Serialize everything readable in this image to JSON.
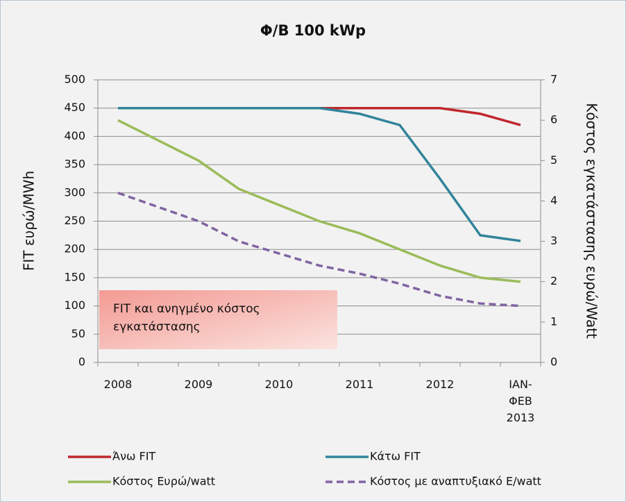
{
  "chart_data": {
    "type": "line",
    "title": "Φ/Β 100 kWp",
    "y_label": "FIT ευρώ/MWh",
    "y2_label": "Κόστος εγκατάστασης ευρώ/Watt",
    "annotation": "FIT και ανηγμένο κόστος εγκατάστασης",
    "categories": [
      "2008",
      null,
      "2009",
      null,
      "2010",
      null,
      "2011",
      null,
      "2012",
      null,
      "ΙΑΝ-ΦΕΒ 2013"
    ],
    "ylim": [
      0,
      500
    ],
    "yticks": [
      0,
      50,
      100,
      150,
      200,
      250,
      300,
      350,
      400,
      450,
      500
    ],
    "y2lim": [
      0,
      7
    ],
    "y2ticks": [
      0,
      1,
      2,
      3,
      4,
      5,
      6,
      7
    ],
    "grid": true,
    "series": [
      {
        "name": "Άνω FIT",
        "color": "#c0272d",
        "axis": "y",
        "dashed": false,
        "values": [
          450,
          450,
          450,
          450,
          450,
          450,
          450,
          450,
          450,
          440,
          420
        ]
      },
      {
        "name": "Κάτω FIT",
        "color": "#31849b",
        "axis": "y",
        "dashed": false,
        "values": [
          450,
          450,
          450,
          450,
          450,
          450,
          440,
          420,
          325,
          225,
          215
        ]
      },
      {
        "name": "Κόστος Ευρώ/watt",
        "color": "#9bbb59",
        "axis": "y2",
        "dashed": false,
        "values": [
          6.0,
          5.5,
          5.0,
          4.3,
          3.9,
          3.5,
          3.2,
          2.8,
          2.4,
          2.1,
          2.0
        ]
      },
      {
        "name": "Κόστος με αναπτυξιακό Ε/watt",
        "color": "#8064a2",
        "axis": "y2",
        "dashed": true,
        "values": [
          4.2,
          3.85,
          3.5,
          3.0,
          2.7,
          2.4,
          2.2,
          1.95,
          1.65,
          1.46,
          1.4
        ]
      }
    ]
  }
}
